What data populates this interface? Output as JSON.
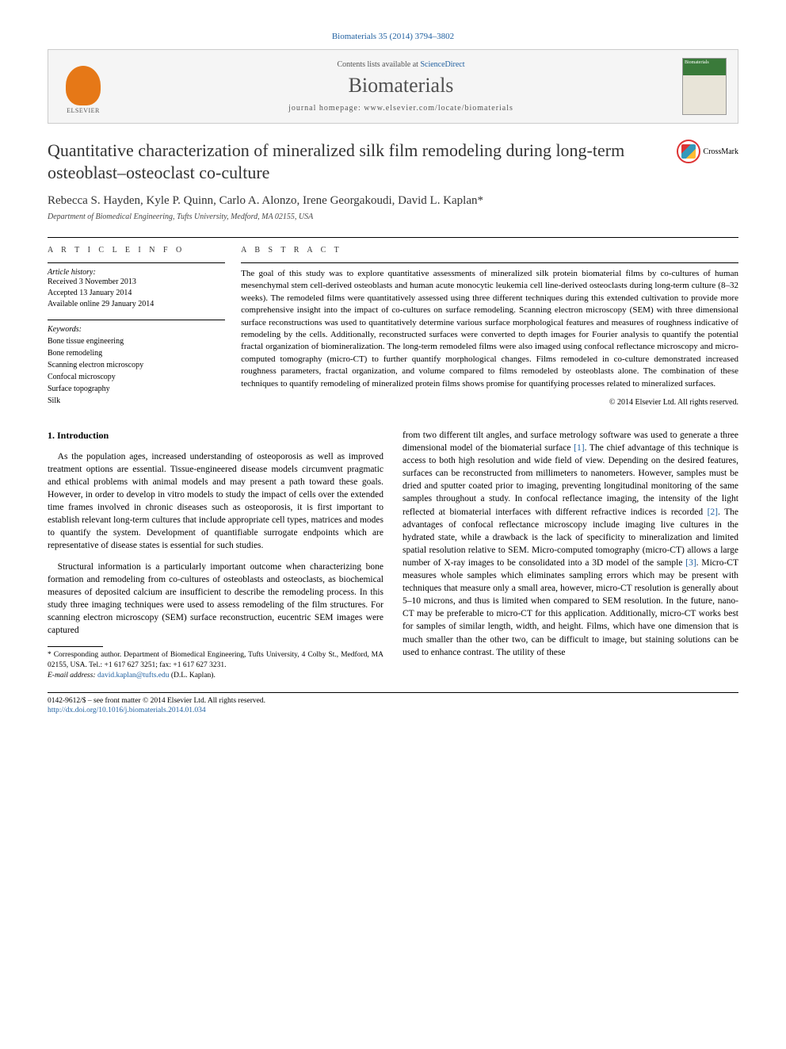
{
  "citation": "Biomaterials 35 (2014) 3794–3802",
  "banner": {
    "contents_prefix": "Contents lists available at ",
    "contents_link": "ScienceDirect",
    "journal": "Biomaterials",
    "homepage_prefix": "journal homepage: ",
    "homepage": "www.elsevier.com/locate/biomaterials",
    "publisher": "ELSEVIER",
    "cover_label": "Biomaterials"
  },
  "title": "Quantitative characterization of mineralized silk film remodeling during long-term osteoblast–osteoclast co-culture",
  "crossmark": "CrossMark",
  "authors": "Rebecca S. Hayden, Kyle P. Quinn, Carlo A. Alonzo, Irene Georgakoudi, David L. Kaplan*",
  "affiliation": "Department of Biomedical Engineering, Tufts University, Medford, MA 02155, USA",
  "info": {
    "heading": "A R T I C L E   I N F O",
    "history_label": "Article history:",
    "received": "Received 3 November 2013",
    "accepted": "Accepted 13 January 2014",
    "online": "Available online 29 January 2014",
    "keywords_label": "Keywords:",
    "keywords": [
      "Bone tissue engineering",
      "Bone remodeling",
      "Scanning electron microscopy",
      "Confocal microscopy",
      "Surface topography",
      "Silk"
    ]
  },
  "abstract": {
    "heading": "A B S T R A C T",
    "text": "The goal of this study was to explore quantitative assessments of mineralized silk protein biomaterial films by co-cultures of human mesenchymal stem cell-derived osteoblasts and human acute monocytic leukemia cell line-derived osteoclasts during long-term culture (8–32 weeks). The remodeled films were quantitatively assessed using three different techniques during this extended cultivation to provide more comprehensive insight into the impact of co-cultures on surface remodeling. Scanning electron microscopy (SEM) with three dimensional surface reconstructions was used to quantitatively determine various surface morphological features and measures of roughness indicative of remodeling by the cells. Additionally, reconstructed surfaces were converted to depth images for Fourier analysis to quantify the potential fractal organization of biomineralization. The long-term remodeled films were also imaged using confocal reflectance microscopy and micro-computed tomography (micro-CT) to further quantify morphological changes. Films remodeled in co-culture demonstrated increased roughness parameters, fractal organization, and volume compared to films remodeled by osteoblasts alone. The combination of these techniques to quantify remodeling of mineralized protein films shows promise for quantifying processes related to mineralized surfaces.",
    "copyright": "© 2014 Elsevier Ltd. All rights reserved."
  },
  "body": {
    "heading": "1.  Introduction",
    "p1": "As the population ages, increased understanding of osteoporosis as well as improved treatment options are essential. Tissue-engineered disease models circumvent pragmatic and ethical problems with animal models and may present a path toward these goals. However, in order to develop in vitro models to study the impact of cells over the extended time frames involved in chronic diseases such as osteoporosis, it is first important to establish relevant long-term cultures that include appropriate cell types, matrices and modes to quantify the system. Development of quantifiable surrogate endpoints which are representative of disease states is essential for such studies.",
    "p2": "Structural information is a particularly important outcome when characterizing bone formation and remodeling from co-cultures of osteoblasts and osteoclasts, as biochemical measures of deposited calcium are insufficient to describe the remodeling process. In this study three imaging techniques were used to assess remodeling of the film structures. For scanning electron microscopy (SEM) surface reconstruction, eucentric SEM images were captured",
    "p3_a": "from two different tilt angles, and surface metrology software was used to generate a three dimensional model of the biomaterial surface ",
    "p3_ref1": "[1]",
    "p3_b": ". The chief advantage of this technique is access to both high resolution and wide field of view. Depending on the desired features, surfaces can be reconstructed from millimeters to nanometers. However, samples must be dried and sputter coated prior to imaging, preventing longitudinal monitoring of the same samples throughout a study. In confocal reflectance imaging, the intensity of the light reflected at biomaterial interfaces with different refractive indices is recorded ",
    "p3_ref2": "[2]",
    "p3_c": ". The advantages of confocal reflectance microscopy include imaging live cultures in the hydrated state, while a drawback is the lack of specificity to mineralization and limited spatial resolution relative to SEM. Micro-computed tomography (micro-CT) allows a large number of X-ray images to be consolidated into a 3D model of the sample ",
    "p3_ref3": "[3]",
    "p3_d": ". Micro-CT measures whole samples which eliminates sampling errors which may be present with techniques that measure only a small area, however, micro-CT resolution is generally about 5–10 microns, and thus is limited when compared to SEM resolution. In the future, nano-CT may be preferable to micro-CT for this application. Additionally, micro-CT works best for samples of similar length, width, and height. Films, which have one dimension that is much smaller than the other two, can be difficult to image, but staining solutions can be used to enhance contrast. The utility of these"
  },
  "footnote": {
    "corr": "* Corresponding author. Department of Biomedical Engineering, Tufts University, 4 Colby St., Medford, MA 02155, USA. Tel.: +1 617 627 3251; fax: +1 617 627 3231.",
    "email_label": "E-mail address: ",
    "email": "david.kaplan@tufts.edu",
    "email_suffix": " (D.L. Kaplan)."
  },
  "bottom": {
    "issn": "0142-9612/$ – see front matter © 2014 Elsevier Ltd. All rights reserved.",
    "doi": "http://dx.doi.org/10.1016/j.biomaterials.2014.01.034"
  },
  "colors": {
    "link": "#2060a0",
    "elsevier_orange": "#e67817",
    "text": "#000000",
    "heading": "#333333"
  }
}
